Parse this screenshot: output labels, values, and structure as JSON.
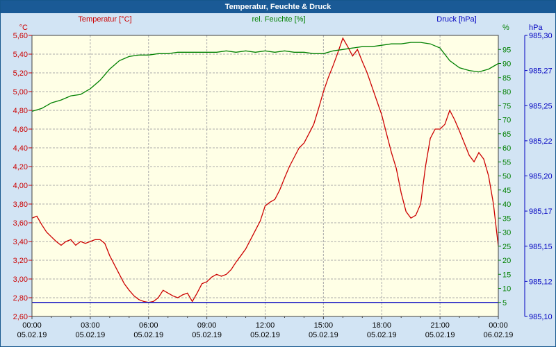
{
  "window": {
    "title": "Temperatur, Feuchte & Druck"
  },
  "colors": {
    "titlebar": "#1A5A96",
    "page_bg": "#D2E4F4",
    "plot_bg": "#FFFFE6",
    "grid": "#ABABAB",
    "border": "#404040",
    "axis_text": "#000000",
    "temperature": "#CC0000",
    "humidity": "#008000",
    "pressure": "#0000C0"
  },
  "chart_data": {
    "type": "line",
    "title": "Temperatur, Feuchte & Druck",
    "x_axis": {
      "unit": "time",
      "hours_range": [
        0,
        24
      ],
      "tick_interval_hours": 3,
      "tick_times": [
        "00:00",
        "03:00",
        "06:00",
        "09:00",
        "12:00",
        "15:00",
        "18:00",
        "21:00",
        "00:00"
      ],
      "tick_dates": [
        "05.02.19",
        "05.02.19",
        "05.02.19",
        "05.02.19",
        "05.02.19",
        "05.02.19",
        "05.02.19",
        "05.02.19",
        "06.02.19"
      ]
    },
    "y_axes": {
      "left": {
        "name": "Temperatur",
        "unit": "°C",
        "min": 2.6,
        "max": 5.6,
        "step": 0.2,
        "color": "#CC0000"
      },
      "humidity": {
        "name": "rel. Feuchte",
        "unit": "%",
        "min": 0,
        "max": 100,
        "label_min": 5,
        "label_max": 95,
        "label_step": 5,
        "color": "#008000"
      },
      "pressure": {
        "name": "Druck",
        "unit": "hPa",
        "min": 985.1,
        "max": 985.3,
        "labels_top_to_bottom": [
          "985,30",
          "985,27",
          "985,25",
          "985,22",
          "985,20",
          "985,17",
          "985,15",
          "985,12",
          "985,10"
        ],
        "color": "#0000C0"
      }
    },
    "grid": {
      "horizontal_step_axis": "left",
      "vertical_step_hours": 3,
      "style": "dashed"
    },
    "series": [
      {
        "name": "Temperatur [°C]",
        "axis": "left",
        "color": "#CC0000",
        "x_start_hour": 0,
        "x_step_hours": 0.25,
        "values": [
          3.65,
          3.67,
          3.58,
          3.5,
          3.45,
          3.4,
          3.36,
          3.4,
          3.42,
          3.36,
          3.4,
          3.38,
          3.4,
          3.42,
          3.42,
          3.38,
          3.25,
          3.15,
          3.05,
          2.95,
          2.88,
          2.82,
          2.78,
          2.76,
          2.75,
          2.76,
          2.8,
          2.88,
          2.85,
          2.82,
          2.8,
          2.83,
          2.85,
          2.76,
          2.85,
          2.95,
          2.97,
          3.02,
          3.05,
          3.03,
          3.05,
          3.1,
          3.18,
          3.25,
          3.32,
          3.42,
          3.52,
          3.62,
          3.78,
          3.82,
          3.85,
          3.95,
          4.08,
          4.2,
          4.3,
          4.4,
          4.45,
          4.55,
          4.65,
          4.82,
          5.0,
          5.15,
          5.28,
          5.42,
          5.57,
          5.48,
          5.38,
          5.45,
          5.32,
          5.2,
          5.05,
          4.9,
          4.75,
          4.55,
          4.35,
          4.18,
          3.92,
          3.72,
          3.65,
          3.68,
          3.8,
          4.2,
          4.5,
          4.6,
          4.6,
          4.65,
          4.8,
          4.7,
          4.58,
          4.45,
          4.32,
          4.25,
          4.35,
          4.28,
          4.1,
          3.8,
          3.35
        ]
      },
      {
        "name": "rel. Feuchte [%]",
        "axis": "humidity",
        "color": "#008000",
        "x_start_hour": 0,
        "x_step_hours": 0.5,
        "values": [
          73,
          74,
          76,
          77,
          78.5,
          79,
          81,
          84,
          88,
          91,
          92.5,
          93,
          93,
          93.5,
          93.5,
          94,
          94,
          94,
          94,
          94,
          94.5,
          94,
          94.5,
          94,
          94.5,
          94,
          94.5,
          94,
          94,
          93.5,
          93.5,
          94.5,
          95,
          95.5,
          96,
          96,
          96.5,
          97,
          97,
          97.5,
          97.5,
          97,
          95.5,
          91,
          88.5,
          87.5,
          87,
          88,
          90
        ]
      },
      {
        "name": "Druck [hPa]",
        "axis": "pressure",
        "color": "#0000C0",
        "x_start_hour": 0,
        "x_step_hours": 24,
        "values": [
          985.11,
          985.11
        ]
      }
    ]
  }
}
